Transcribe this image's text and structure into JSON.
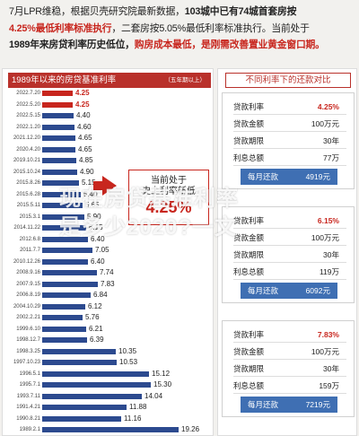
{
  "intro": {
    "line1_a": "7月LPR维稳，根据贝壳研究院最新数据，",
    "line1_b": "103城中已有74城首套房按",
    "line2_a": "4.25%最低利率标准执行",
    "line2_b": "，二套房按5.05%最低利率标准执行。当前处于",
    "line3_a": "1989年来房贷利率历史低位，",
    "line3_b": "购房成本最低，是刚需改善置业黄金窗口期。"
  },
  "left": {
    "title": "1989年以来的房贷基准利率",
    "unit": "（五年期以上）",
    "callout": {
      "line1": "当前处于",
      "line2": "史上利率新低",
      "value": "4.25%"
    },
    "rows": [
      {
        "date": "2022.7.20",
        "value": "4.25",
        "num": 4.25,
        "hl": true
      },
      {
        "date": "2022.5.20",
        "value": "4.25",
        "num": 4.25,
        "hl": true
      },
      {
        "date": "2022.5.15",
        "value": "4.40",
        "num": 4.4,
        "hl": false
      },
      {
        "date": "2022.1.20",
        "value": "4.60",
        "num": 4.6,
        "hl": false
      },
      {
        "date": "2021.12.20",
        "value": "4.65",
        "num": 4.65,
        "hl": false
      },
      {
        "date": "2020.4.20",
        "value": "4.65",
        "num": 4.65,
        "hl": false
      },
      {
        "date": "2019.10.21",
        "value": "4.85",
        "num": 4.85,
        "hl": false
      },
      {
        "date": "2015.10.24",
        "value": "4.90",
        "num": 4.9,
        "hl": false
      },
      {
        "date": "2015.8.26",
        "value": "5.15",
        "num": 5.15,
        "hl": false
      },
      {
        "date": "2015.6.28",
        "value": "5.40",
        "num": 5.4,
        "hl": false
      },
      {
        "date": "2015.5.11",
        "value": "5.65",
        "num": 5.65,
        "hl": false
      },
      {
        "date": "2015.3.1",
        "value": "5.90",
        "num": 5.9,
        "hl": false
      },
      {
        "date": "2014.11.22",
        "value": "6.15",
        "num": 6.15,
        "hl": false
      },
      {
        "date": "2012.6.8",
        "value": "6.40",
        "num": 6.4,
        "hl": false
      },
      {
        "date": "2011.7.7",
        "value": "7.05",
        "num": 7.05,
        "hl": false
      },
      {
        "date": "2010.12.26",
        "value": "6.40",
        "num": 6.4,
        "hl": false
      },
      {
        "date": "2008.9.16",
        "value": "7.74",
        "num": 7.74,
        "hl": false
      },
      {
        "date": "2007.9.15",
        "value": "7.83",
        "num": 7.83,
        "hl": false
      },
      {
        "date": "2006.8.19",
        "value": "6.84",
        "num": 6.84,
        "hl": false
      },
      {
        "date": "2004.10.29",
        "value": "6.12",
        "num": 6.12,
        "hl": false
      },
      {
        "date": "2002.2.21",
        "value": "5.76",
        "num": 5.76,
        "hl": false
      },
      {
        "date": "1999.6.10",
        "value": "6.21",
        "num": 6.21,
        "hl": false
      },
      {
        "date": "1998.12.7",
        "value": "6.39",
        "num": 6.39,
        "hl": false
      },
      {
        "date": "1998.3.25",
        "value": "10.35",
        "num": 10.35,
        "hl": false
      },
      {
        "date": "1997.10.23",
        "value": "10.53",
        "num": 10.53,
        "hl": false
      },
      {
        "date": "1996.5.1",
        "value": "15.12",
        "num": 15.12,
        "hl": false
      },
      {
        "date": "1995.7.1",
        "value": "15.30",
        "num": 15.3,
        "hl": false
      },
      {
        "date": "1993.7.11",
        "value": "14.04",
        "num": 14.04,
        "hl": false
      },
      {
        "date": "1991.4.21",
        "value": "11.88",
        "num": 11.88,
        "hl": false
      },
      {
        "date": "1990.8.21",
        "value": "11.16",
        "num": 11.16,
        "hl": false
      },
      {
        "date": "1989.2.1",
        "value": "19.26",
        "num": 19.26,
        "hl": false
      }
    ]
  },
  "right": {
    "title": "不同利率下的还款对比",
    "cards": [
      {
        "rate_label": "贷款利率",
        "rate": "4.25%",
        "amount_label": "贷款金额",
        "amount": "100万元",
        "term_label": "贷款期限",
        "term": "30年",
        "interest_label": "利息总额",
        "interest": "77万",
        "pay_label": "每月还款",
        "pay": "4919元"
      },
      {
        "rate_label": "贷款利率",
        "rate": "6.15%",
        "amount_label": "贷款金额",
        "amount": "100万元",
        "term_label": "贷款期限",
        "term": "30年",
        "interest_label": "利息总额",
        "interest": "119万",
        "pay_label": "每月还款",
        "pay": "6092元"
      },
      {
        "rate_label": "贷款利率",
        "rate": "7.83%",
        "amount_label": "贷款金额",
        "amount": "100万元",
        "term_label": "贷款期限",
        "term": "30年",
        "interest_label": "利息总额",
        "interest": "159万",
        "pay_label": "每月还款",
        "pay": "7219元"
      }
    ]
  },
  "watermark": {
    "line1": "现在房贷基准利率",
    "line2": "是多少2020?一文"
  },
  "colors": {
    "accent_red": "#c8261e",
    "bar_blue": "#2c4a8f",
    "pay_blue": "#3f6fb3"
  }
}
